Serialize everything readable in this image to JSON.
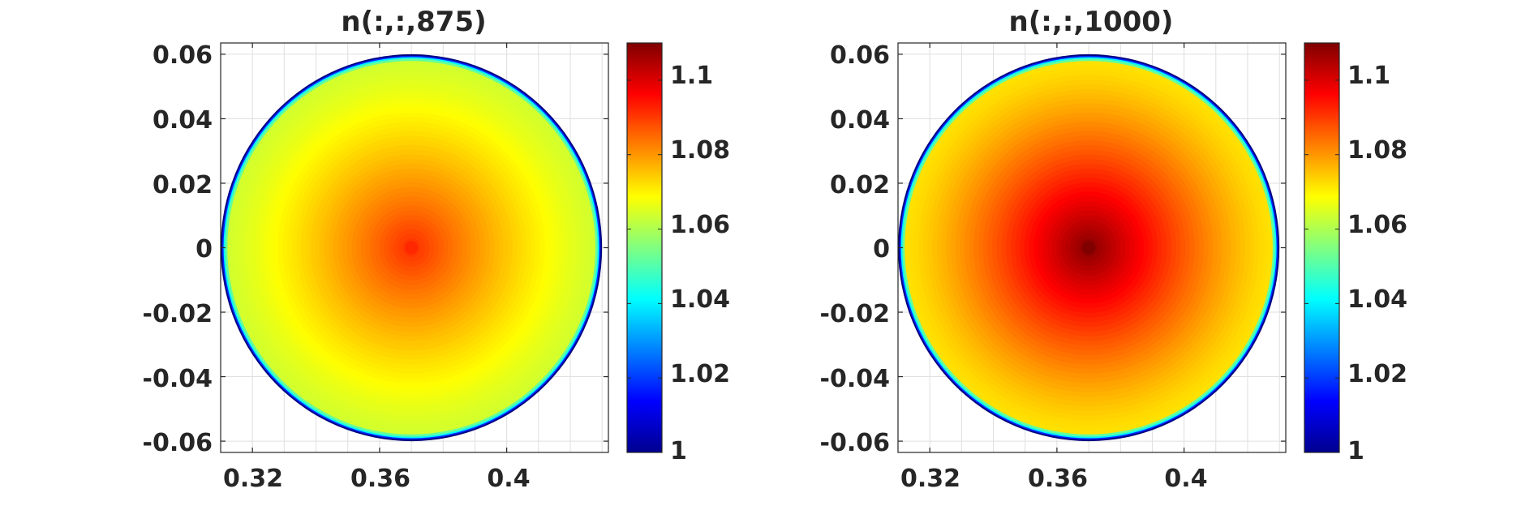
{
  "chart_data": [
    {
      "type": "heatmap",
      "title": "n(:,:,875)",
      "xlabel": "",
      "ylabel": "",
      "xlim": [
        0.31,
        0.432
      ],
      "ylim": [
        -0.0635,
        0.0635
      ],
      "x_ticks": [
        0.32,
        0.36,
        0.4
      ],
      "x_tick_labels": [
        "0.32",
        "0.36",
        "0.4"
      ],
      "y_ticks": [
        0.06,
        0.04,
        0.02,
        0,
        -0.02,
        -0.04,
        -0.06
      ],
      "y_tick_labels": [
        "0.06",
        "0.04",
        "0.02",
        "0",
        "-0.02",
        "-0.04",
        "-0.06"
      ],
      "grid": true,
      "field": {
        "shape": "disk",
        "center_x": 0.37,
        "center_y": 0.0,
        "radius": 0.06,
        "center_value": 1.092,
        "edge_value": 1.064,
        "wall_value": 1.0
      },
      "colorbar": {
        "colormap": "jet",
        "min": 1.0,
        "max": 1.11,
        "ticks": [
          1.1,
          1.08,
          1.06,
          1.04,
          1.02,
          1
        ],
        "tick_labels": [
          "1.1",
          "1.08",
          "1.06",
          "1.04",
          "1.02",
          "1"
        ]
      }
    },
    {
      "type": "heatmap",
      "title": "n(:,:,1000)",
      "xlabel": "",
      "ylabel": "",
      "xlim": [
        0.31,
        0.432
      ],
      "ylim": [
        -0.0635,
        0.0635
      ],
      "x_ticks": [
        0.32,
        0.36,
        0.4
      ],
      "x_tick_labels": [
        "0.32",
        "0.36",
        "0.4"
      ],
      "y_ticks": [
        0.06,
        0.04,
        0.02,
        0,
        -0.02,
        -0.04,
        -0.06
      ],
      "y_tick_labels": [
        "0.06",
        "0.04",
        "0.02",
        "0",
        "-0.02",
        "-0.04",
        "-0.06"
      ],
      "grid": true,
      "field": {
        "shape": "disk",
        "center_x": 0.37,
        "center_y": 0.0,
        "radius": 0.06,
        "center_value": 1.11,
        "edge_value": 1.072,
        "wall_value": 1.0
      },
      "colorbar": {
        "colormap": "jet",
        "min": 1.0,
        "max": 1.11,
        "ticks": [
          1.1,
          1.08,
          1.06,
          1.04,
          1.02,
          1
        ],
        "tick_labels": [
          "1.1",
          "1.08",
          "1.06",
          "1.04",
          "1.02",
          "1"
        ]
      }
    }
  ],
  "colors": {
    "axis": "#262626",
    "grid": "#dfdfdf",
    "background": "#ffffff"
  }
}
